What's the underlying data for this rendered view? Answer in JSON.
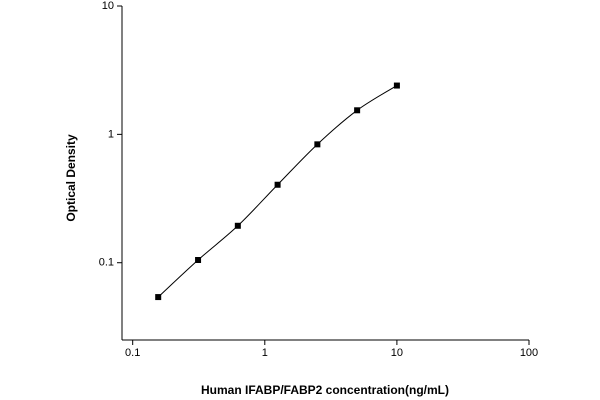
{
  "chart_data": {
    "type": "scatter",
    "x_label": "Human IFABP/FABP2 concentration(ng/mL)",
    "y_label": "Optical Density",
    "x": [
      0.156,
      0.3125,
      0.625,
      1.25,
      2.5,
      5,
      10
    ],
    "series": [
      {
        "color": "#000000",
        "values": [
          0.054,
          0.105,
          0.194,
          0.405,
          0.836,
          1.54,
          2.4
        ]
      }
    ],
    "xlim": [
      0.083,
      100
    ],
    "ylim": [
      0.025,
      10
    ],
    "xticks": [
      0.1,
      1,
      10,
      100
    ],
    "yticks": [
      0.1,
      1,
      10
    ],
    "xscale": "log",
    "yscale": "log",
    "grid": false,
    "fit_curve": true
  }
}
